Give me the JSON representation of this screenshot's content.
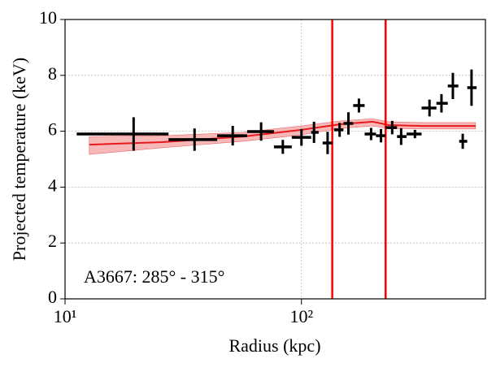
{
  "chart_data": {
    "type": "errorbar",
    "xlabel": "Radius (kpc)",
    "ylabel": "Projected temperature (keV)",
    "annotation": "A3667: 285° - 315°",
    "xscale": "log",
    "xlim": [
      10,
      600
    ],
    "ylim": [
      0,
      10
    ],
    "xticks": [
      {
        "value": 10,
        "label": "10¹"
      },
      {
        "value": 100,
        "label": "10²"
      }
    ],
    "yticks": [
      0,
      2,
      4,
      6,
      8,
      10
    ],
    "grid": true,
    "color": "#000000",
    "x": [
      19.5,
      35.3,
      51.2,
      67.5,
      83.4,
      100,
      113,
      129,
      145,
      158,
      175,
      197,
      217,
      242,
      264,
      302,
      348,
      391,
      437,
      481,
      524
    ],
    "x_low": [
      11.2,
      27.4,
      44.0,
      58.9,
      76.5,
      91.0,
      109.9,
      122.9,
      137.4,
      150.6,
      165.5,
      185.0,
      206.7,
      227.1,
      253.6,
      278.3,
      322.1,
      372.2,
      415.9,
      464.6,
      502.7
    ],
    "x_high": [
      27.4,
      44.0,
      58.9,
      76.5,
      91.0,
      109.9,
      118.2,
      135.2,
      150.6,
      165.5,
      185.0,
      206.7,
      227.1,
      253.6,
      278.3,
      322.1,
      372.2,
      415.9,
      460.9,
      502.7,
      550.7
    ],
    "values": [
      5.9,
      5.7,
      5.84,
      5.99,
      5.44,
      5.78,
      5.96,
      5.58,
      6.05,
      6.28,
      6.92,
      5.9,
      5.84,
      6.13,
      5.81,
      5.9,
      6.83,
      7.0,
      7.62,
      5.64,
      7.56
    ],
    "yerr": [
      0.6,
      0.4,
      0.35,
      0.33,
      0.25,
      0.3,
      0.38,
      0.4,
      0.25,
      0.4,
      0.25,
      0.22,
      0.24,
      0.24,
      0.3,
      0.15,
      0.3,
      0.33,
      0.47,
      0.27,
      0.65
    ],
    "model": {
      "color": "#e8191c",
      "band_color": "#f4a0a0",
      "x": [
        12.66,
        25.8,
        56.7,
        100,
        146,
        200,
        234,
        322,
        545
      ],
      "y": [
        5.52,
        5.61,
        5.81,
        6.05,
        6.25,
        6.34,
        6.22,
        6.19,
        6.19
      ],
      "lower": [
        5.17,
        5.41,
        5.64,
        5.87,
        6.1,
        6.19,
        6.1,
        6.08,
        6.08
      ],
      "upper": [
        5.81,
        5.84,
        5.96,
        6.19,
        6.37,
        6.45,
        6.34,
        6.31,
        6.31
      ]
    },
    "vlines": {
      "color": "#ff0000",
      "x": [
        135,
        227
      ]
    }
  }
}
